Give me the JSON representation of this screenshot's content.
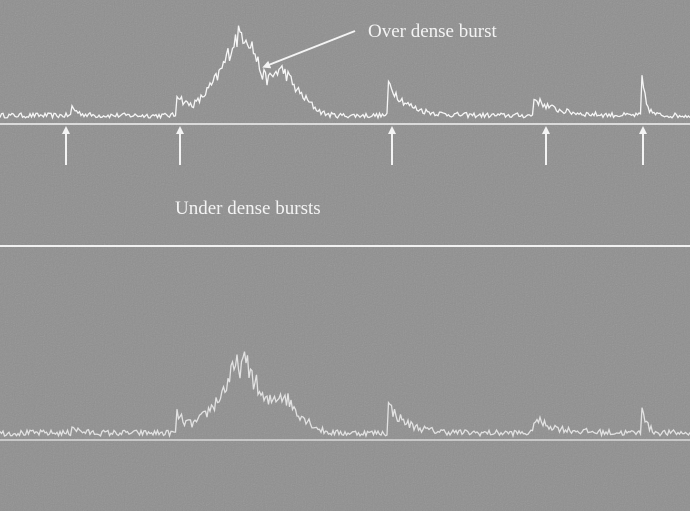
{
  "annotations": {
    "over_dense": "Over dense burst",
    "under_dense": "Under dense bursts"
  }
}
